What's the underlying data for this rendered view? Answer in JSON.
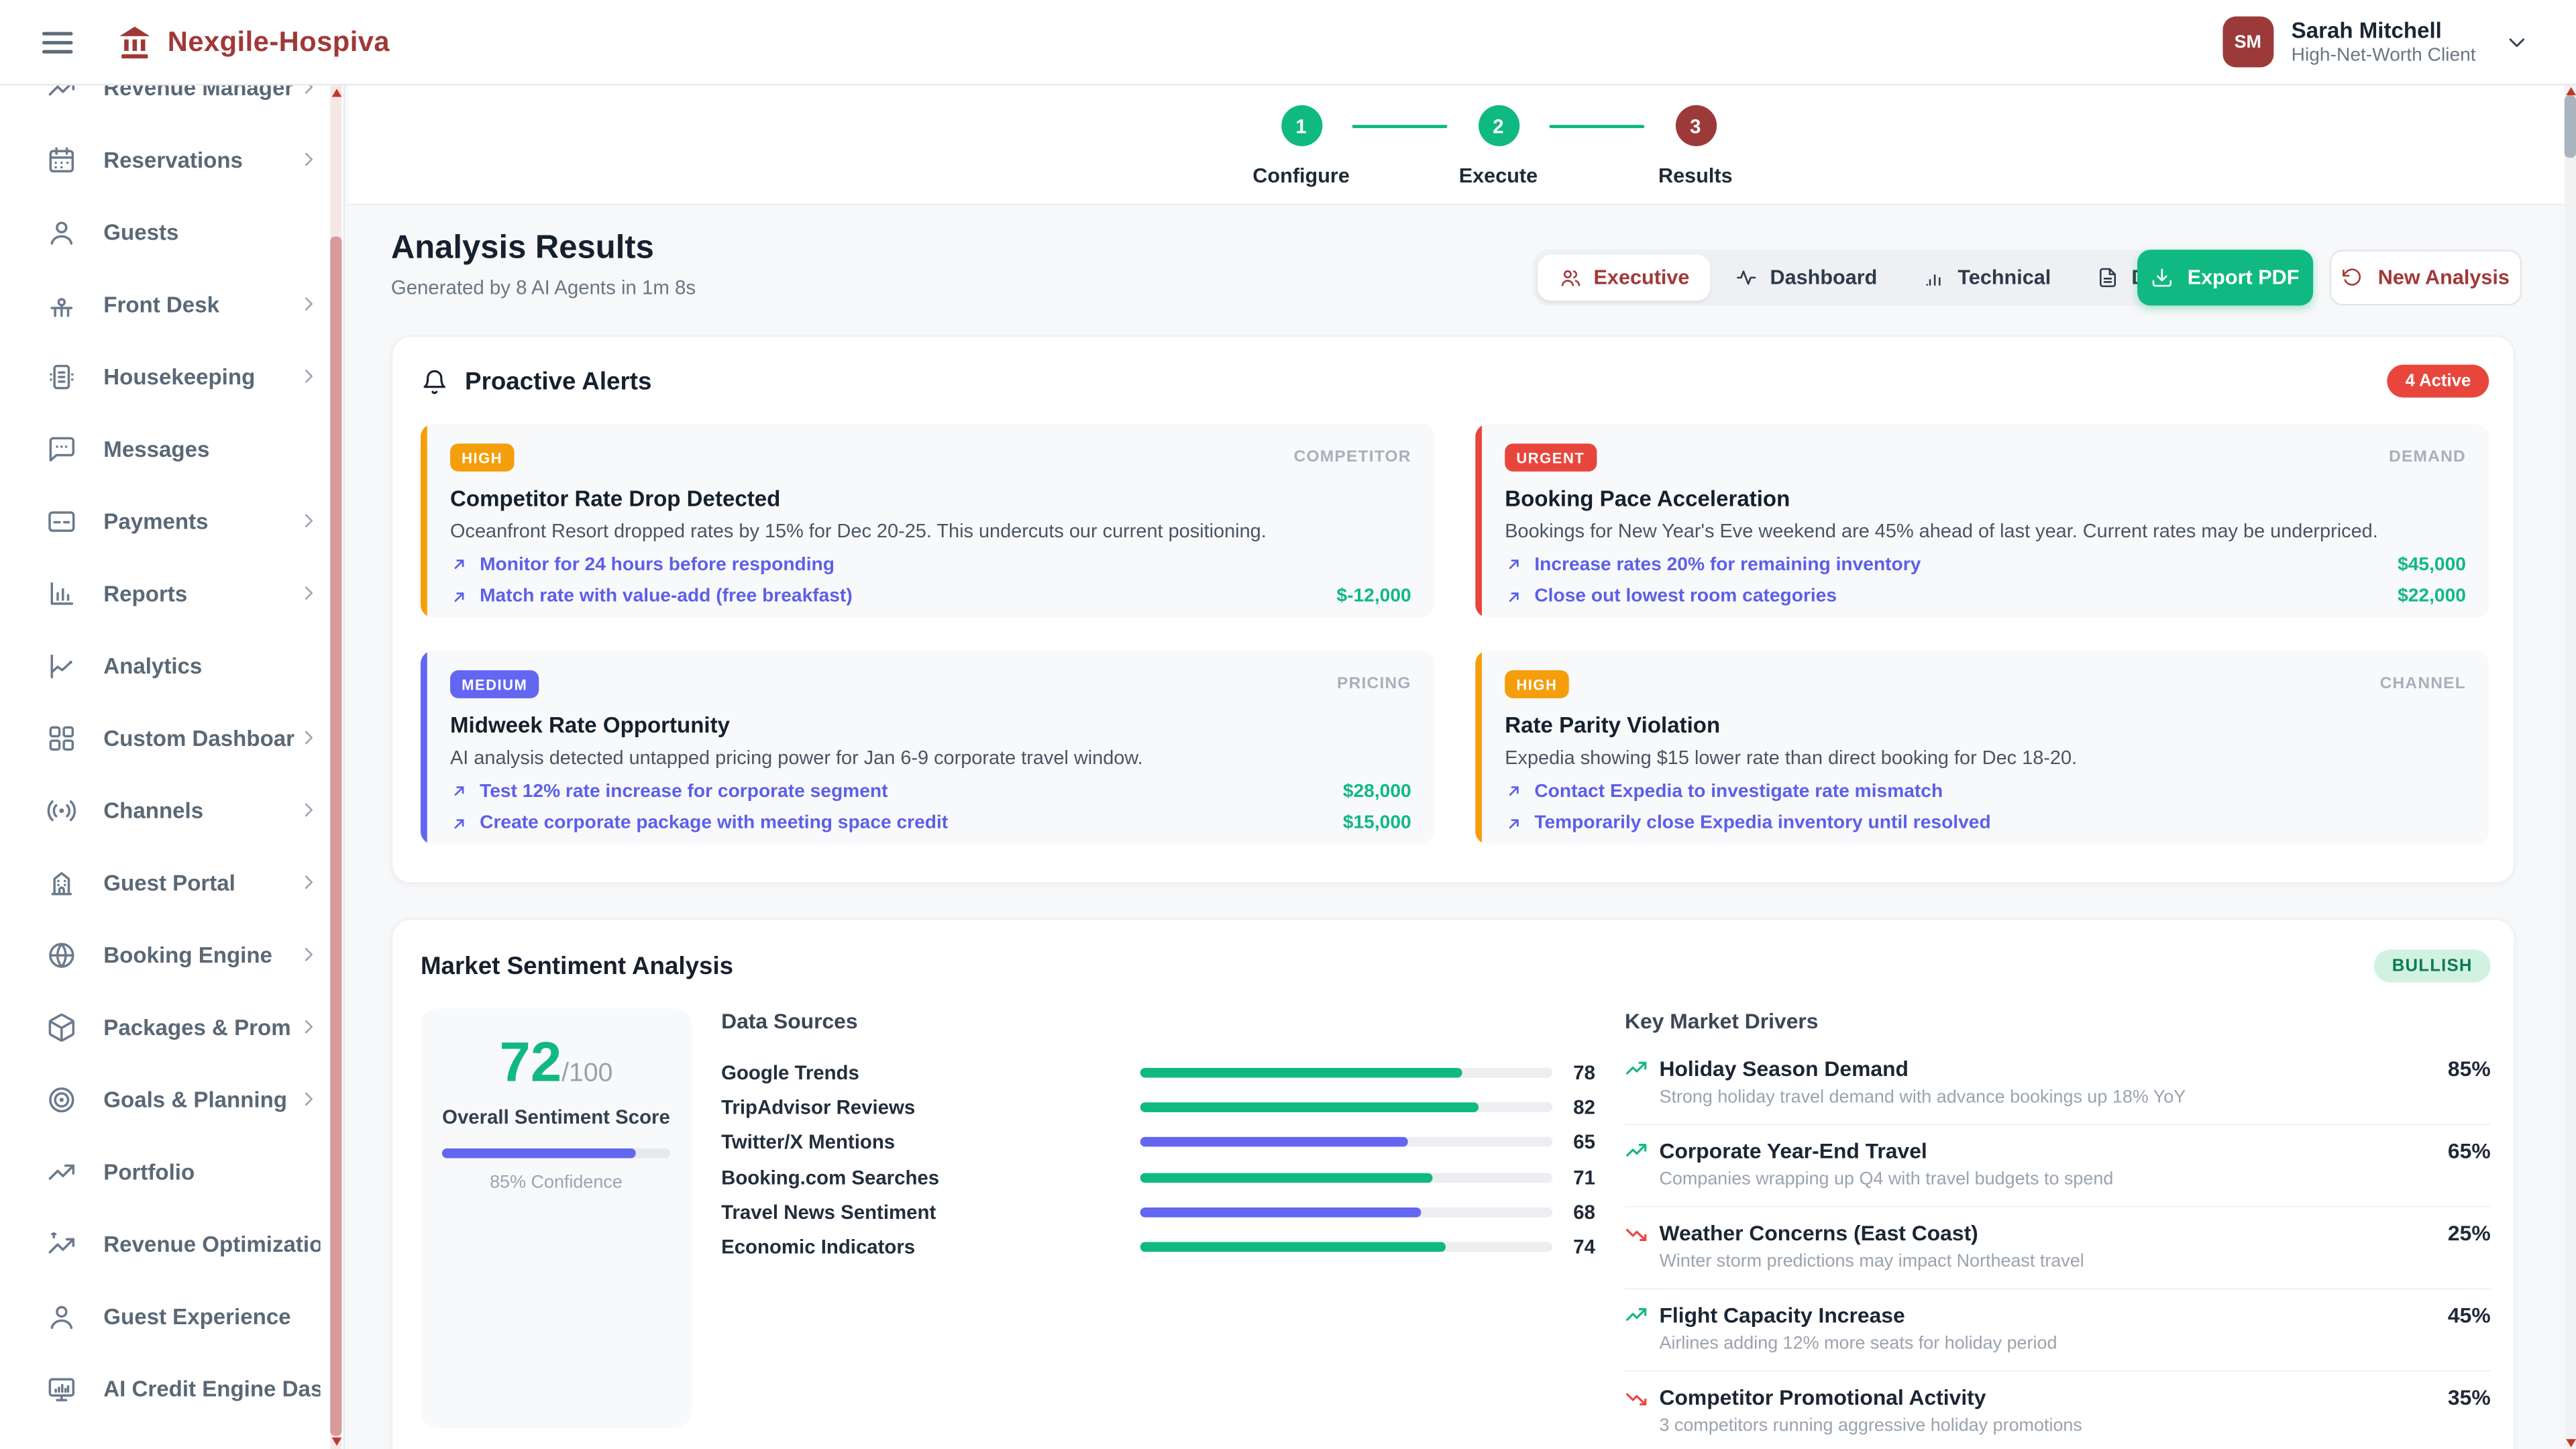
{
  "header": {
    "brand": "Nexgile-Hospiva",
    "user": {
      "initials": "SM",
      "name": "Sarah Mitchell",
      "role": "High-Net-Worth Client"
    }
  },
  "sidebar": {
    "items": [
      {
        "label": "Revenue Manager"
      },
      {
        "label": "Reservations"
      },
      {
        "label": "Guests"
      },
      {
        "label": "Front Desk"
      },
      {
        "label": "Housekeeping"
      },
      {
        "label": "Messages"
      },
      {
        "label": "Payments"
      },
      {
        "label": "Reports"
      },
      {
        "label": "Analytics"
      },
      {
        "label": "Custom Dashboar"
      },
      {
        "label": "Channels"
      },
      {
        "label": "Guest Portal"
      },
      {
        "label": "Booking Engine"
      },
      {
        "label": "Packages & Prom"
      },
      {
        "label": "Goals & Planning"
      },
      {
        "label": "Portfolio"
      },
      {
        "label": "Revenue Optimization"
      },
      {
        "label": "Guest Experience"
      },
      {
        "label": "AI Credit Engine Dash"
      }
    ]
  },
  "stepper": {
    "steps": [
      {
        "num": "1",
        "label": "Configure"
      },
      {
        "num": "2",
        "label": "Execute"
      },
      {
        "num": "3",
        "label": "Results"
      }
    ]
  },
  "page": {
    "title": "Analysis Results",
    "subtitle": "Generated by 8 AI Agents in 1m 8s"
  },
  "tabs": [
    {
      "label": "Executive"
    },
    {
      "label": "Dashboard"
    },
    {
      "label": "Technical"
    },
    {
      "label": "Detailed"
    }
  ],
  "buttons": {
    "export": "Export PDF",
    "new_analysis": "New Analysis"
  },
  "alerts": {
    "heading": "Proactive Alerts",
    "badge": "4 Active",
    "cards": [
      {
        "severity": "HIGH",
        "severity_color": "#f59e0b",
        "category": "COMPETITOR",
        "title": "Competitor Rate Drop Detected",
        "desc": "Oceanfront Resort dropped rates by 15% for Dec 20-25. This undercuts our current positioning.",
        "actions": [
          {
            "text": "Monitor for 24 hours before responding",
            "value": ""
          },
          {
            "text": "Match rate with value-add (free breakfast)",
            "value": "$-12,000"
          }
        ]
      },
      {
        "severity": "URGENT",
        "severity_color": "#e8463d",
        "category": "DEMAND",
        "title": "Booking Pace Acceleration",
        "desc": "Bookings for New Year's Eve weekend are 45% ahead of last year. Current rates may be underpriced.",
        "actions": [
          {
            "text": "Increase rates 20% for remaining inventory",
            "value": "$45,000"
          },
          {
            "text": "Close out lowest room categories",
            "value": "$22,000"
          }
        ]
      },
      {
        "severity": "MEDIUM",
        "severity_color": "#6366f1",
        "category": "PRICING",
        "title": "Midweek Rate Opportunity",
        "desc": "AI analysis detected untapped pricing power for Jan 6-9 corporate travel window.",
        "actions": [
          {
            "text": "Test 12% rate increase for corporate segment",
            "value": "$28,000"
          },
          {
            "text": "Create corporate package with meeting space credit",
            "value": "$15,000"
          }
        ]
      },
      {
        "severity": "HIGH",
        "severity_color": "#f59e0b",
        "category": "CHANNEL",
        "title": "Rate Parity Violation",
        "desc": "Expedia showing $15 lower rate than direct booking for Dec 18-20.",
        "actions": [
          {
            "text": "Contact Expedia to investigate rate mismatch",
            "value": ""
          },
          {
            "text": "Temporarily close Expedia inventory until resolved",
            "value": ""
          }
        ]
      }
    ]
  },
  "sentiment": {
    "heading": "Market Sentiment Analysis",
    "badge": "BULLISH",
    "score": "72",
    "score_max": "/100",
    "score_label": "Overall Sentiment Score",
    "confidence_pct": 85,
    "confidence_label": "85% Confidence",
    "sources_heading": "Data Sources",
    "sources": [
      {
        "label": "Google Trends",
        "value": 78,
        "color": "#10b981"
      },
      {
        "label": "TripAdvisor Reviews",
        "value": 82,
        "color": "#10b981"
      },
      {
        "label": "Twitter/X Mentions",
        "value": 65,
        "color": "#6366f1"
      },
      {
        "label": "Booking.com Searches",
        "value": 71,
        "color": "#10b981"
      },
      {
        "label": "Travel News Sentiment",
        "value": 68,
        "color": "#6366f1"
      },
      {
        "label": "Economic Indicators",
        "value": 74,
        "color": "#10b981"
      }
    ],
    "drivers_heading": "Key Market Drivers",
    "drivers": [
      {
        "title": "Holiday Season Demand",
        "pct": "85%",
        "desc": "Strong holiday travel demand with advance bookings up 18% YoY",
        "direction": "up"
      },
      {
        "title": "Corporate Year-End Travel",
        "pct": "65%",
        "desc": "Companies wrapping up Q4 with travel budgets to spend",
        "direction": "up"
      },
      {
        "title": "Weather Concerns (East Coast)",
        "pct": "25%",
        "desc": "Winter storm predictions may impact Northeast travel",
        "direction": "down"
      },
      {
        "title": "Flight Capacity Increase",
        "pct": "45%",
        "desc": "Airlines adding 12% more seats for holiday period",
        "direction": "up"
      },
      {
        "title": "Competitor Promotional Activity",
        "pct": "35%",
        "desc": "3 competitors running aggressive holiday promotions",
        "direction": "down"
      }
    ]
  }
}
